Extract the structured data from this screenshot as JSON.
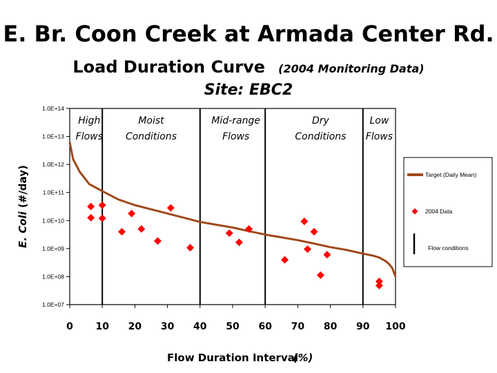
{
  "slide": {
    "title": "E. Br. Coon Creek at Armada Center Rd.",
    "subtitle_main": "Load Duration Curve",
    "subtitle_note": "(2004 Monitoring Data)",
    "site": "Site:  EBC2"
  },
  "chart_data": {
    "type": "scatter",
    "xlabel": "Flow Duration Interval",
    "xlabel_unit": "(%)",
    "ylabel_italic": "E. Coli",
    "ylabel_unit": "(#/day)",
    "xlim": [
      0,
      100
    ],
    "ylim_log10": [
      7,
      14
    ],
    "x_ticks": [
      "0",
      "10",
      "20",
      "30",
      "40",
      "50",
      "60",
      "70",
      "80",
      "90",
      "100"
    ],
    "y_ticks": [
      "1.0E+07",
      "1.0E+08",
      "1.0E+09",
      "1.0E+10",
      "1.0E+11",
      "1.0E+12",
      "1.0E+13",
      "1.0E+14"
    ],
    "flow_boundaries": [
      10,
      40,
      60,
      90
    ],
    "zones": [
      {
        "line1": "High",
        "line2": "Flows",
        "x": 6
      },
      {
        "line1": "Moist",
        "line2": "Conditions",
        "x": 25
      },
      {
        "line1": "Mid-range",
        "line2": "Flows",
        "x": 51
      },
      {
        "line1": "Dry",
        "line2": "Conditions",
        "x": 77
      },
      {
        "line1": "Low",
        "line2": "Flows",
        "x": 95
      }
    ],
    "series": [
      {
        "name": "Target (Daily Mean)",
        "kind": "line",
        "color": "#a0481a",
        "x": [
          0,
          1,
          3,
          6,
          10,
          15,
          20,
          25,
          30,
          35,
          40,
          45,
          50,
          55,
          60,
          65,
          70,
          75,
          80,
          85,
          90,
          93,
          95,
          97,
          98,
          99,
          100
        ],
        "log10_y": [
          12.8,
          12.2,
          11.75,
          11.3,
          11.05,
          10.75,
          10.55,
          10.4,
          10.25,
          10.1,
          9.95,
          9.85,
          9.75,
          9.62,
          9.5,
          9.4,
          9.3,
          9.18,
          9.05,
          8.95,
          8.82,
          8.75,
          8.68,
          8.55,
          8.45,
          8.3,
          8.0
        ]
      },
      {
        "name": "2004 Data",
        "kind": "points",
        "color": "#ff0000",
        "x": [
          6.5,
          6.5,
          10,
          10,
          16,
          19,
          22,
          27,
          31,
          37,
          49,
          52,
          55,
          66,
          72,
          73,
          75,
          77,
          79,
          95,
          95
        ],
        "log10_y": [
          10.5,
          10.1,
          10.55,
          10.08,
          9.6,
          10.25,
          9.7,
          9.27,
          10.45,
          9.03,
          9.55,
          9.22,
          9.7,
          8.6,
          9.97,
          8.98,
          9.6,
          8.05,
          8.78,
          7.83,
          7.68
        ]
      }
    ],
    "legend": {
      "placement": "right",
      "items": [
        "Target (Daily Mean)",
        "2004 Data",
        "Flow conditions"
      ]
    }
  }
}
